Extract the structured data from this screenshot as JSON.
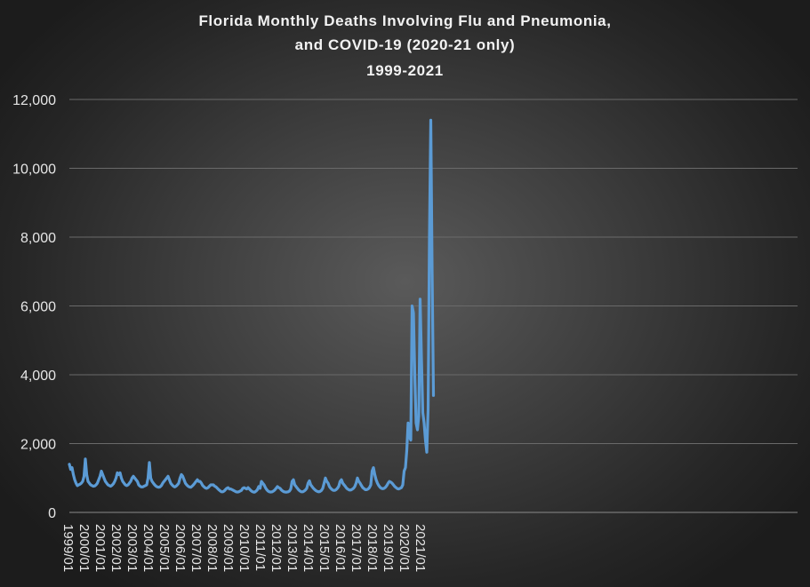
{
  "chart_data": {
    "type": "line",
    "title_lines": [
      "Florida Monthly Deaths Involving Flu and Pneumonia,",
      "and COVID-19  (2020-21  only)",
      "1999-2021"
    ],
    "xlabel": "",
    "ylabel": "",
    "ylim": [
      0,
      12000
    ],
    "y_ticks": [
      0,
      2000,
      4000,
      6000,
      8000,
      10000,
      12000
    ],
    "y_tick_labels": [
      "0",
      "2,000",
      "4,000",
      "6,000",
      "8,000",
      "10,000",
      "12,000"
    ],
    "x_tick_labels": [
      "1999/01",
      "2000/01",
      "2001/01",
      "2002/01",
      "2003/01",
      "2004/01",
      "2005/01",
      "2006/01",
      "2007/01",
      "2008/01",
      "2009/01",
      "2010/01",
      "2011/01",
      "2012/01",
      "2013/01",
      "2014/01",
      "2015/01",
      "2016/01",
      "2017/01",
      "2018/01",
      "2019/01",
      "2020/01",
      "2021/01"
    ],
    "grid": true,
    "legend": "none",
    "line_color": "#5b9bd5",
    "grid_color": "#6a6a6a",
    "series": [
      {
        "values": [
          1400,
          1250,
          1300,
          1100,
          950,
          850,
          780,
          800,
          820,
          850,
          900,
          1050,
          1550,
          1100,
          900,
          850,
          800,
          780,
          760,
          770,
          800,
          850,
          950,
          1050,
          1200,
          1100,
          1000,
          900,
          850,
          800,
          780,
          760,
          790,
          830,
          900,
          1000,
          1150,
          1100,
          1150,
          1000,
          900,
          850,
          800,
          780,
          800,
          850,
          900,
          1000,
          1050,
          1000,
          950,
          900,
          800,
          760,
          740,
          740,
          760,
          780,
          800,
          1000,
          1450,
          1000,
          900,
          850,
          800,
          760,
          740,
          730,
          740,
          780,
          850,
          900,
          950,
          1000,
          1050,
          950,
          850,
          800,
          760,
          740,
          760,
          800,
          850,
          1000,
          1100,
          1050,
          950,
          850,
          800,
          760,
          740,
          730,
          760,
          800,
          850,
          900,
          950,
          900,
          900,
          850,
          780,
          740,
          710,
          700,
          720,
          760,
          800,
          800,
          800,
          760,
          740,
          700,
          660,
          630,
          600,
          600,
          620,
          660,
          700,
          720,
          680,
          680,
          660,
          640,
          620,
          600,
          590,
          600,
          620,
          640,
          700,
          720,
          700,
          680,
          720,
          680,
          640,
          610,
          590,
          590,
          620,
          660,
          750,
          700,
          900,
          850,
          800,
          720,
          660,
          620,
          600,
          590,
          600,
          620,
          650,
          700,
          750,
          720,
          700,
          650,
          620,
          600,
          590,
          590,
          600,
          620,
          680,
          900,
          950,
          800,
          750,
          700,
          650,
          620,
          600,
          600,
          620,
          650,
          700,
          850,
          920,
          800,
          750,
          700,
          660,
          630,
          610,
          600,
          610,
          640,
          700,
          850,
          1000,
          900,
          850,
          750,
          700,
          660,
          640,
          640,
          660,
          700,
          760,
          900,
          950,
          850,
          800,
          750,
          700,
          670,
          650,
          650,
          670,
          700,
          750,
          850,
          1000,
          900,
          850,
          780,
          720,
          690,
          660,
          660,
          680,
          720,
          800,
          1200,
          1300,
          1100,
          950,
          850,
          780,
          730,
          700,
          690,
          700,
          730,
          780,
          850,
          900,
          880,
          850,
          800,
          750,
          720,
          690,
          680,
          700,
          720,
          800,
          1200,
          1300,
          1800,
          2600,
          2200,
          2100,
          6000,
          5800,
          4000,
          2600,
          2400,
          2800,
          6200,
          4500,
          2900,
          2600,
          2100,
          1750,
          3000,
          8000,
          11400,
          7000,
          3400
        ]
      }
    ]
  }
}
